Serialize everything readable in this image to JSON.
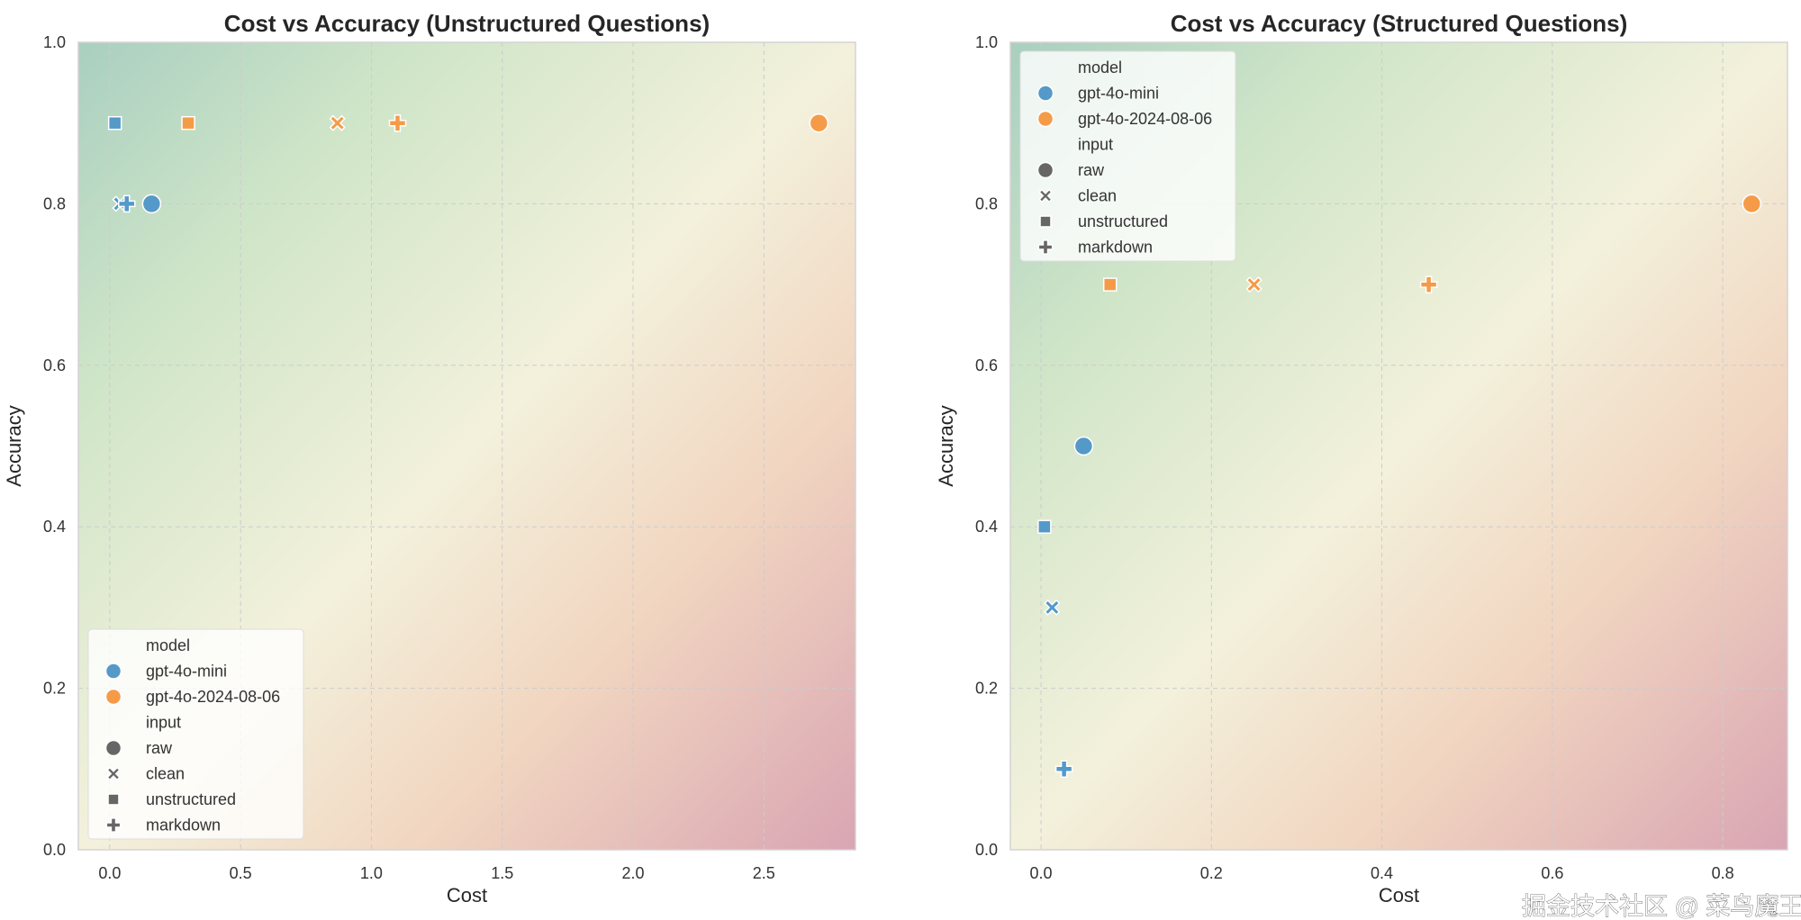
{
  "chart_data": [
    {
      "type": "scatter",
      "title": "Cost vs Accuracy (Unstructured Questions)",
      "xlabel": "Cost",
      "ylabel": "Accuracy",
      "xlim": [
        -0.12,
        2.85
      ],
      "ylim": [
        0,
        1
      ],
      "xticks": [
        "0.0",
        "0.5",
        "1.0",
        "1.5",
        "2.0",
        "2.5"
      ],
      "xtick_values": [
        0,
        0.5,
        1,
        1.5,
        2,
        2.5
      ],
      "yticks": [
        "0.0",
        "0.2",
        "0.4",
        "0.6",
        "0.8",
        "1.0"
      ],
      "ytick_values": [
        0,
        0.2,
        0.4,
        0.6,
        0.8,
        1
      ],
      "grid": true,
      "legend_position": "bottom-left",
      "points": [
        {
          "model": "gpt-4o-mini",
          "input": "unstructured",
          "x": 0.02,
          "y": 0.9
        },
        {
          "model": "gpt-4o-mini",
          "input": "clean",
          "x": 0.04,
          "y": 0.8
        },
        {
          "model": "gpt-4o-mini",
          "input": "markdown",
          "x": 0.065,
          "y": 0.8
        },
        {
          "model": "gpt-4o-mini",
          "input": "raw",
          "x": 0.16,
          "y": 0.8
        },
        {
          "model": "gpt-4o-2024-08-06",
          "input": "unstructured",
          "x": 0.3,
          "y": 0.9
        },
        {
          "model": "gpt-4o-2024-08-06",
          "input": "clean",
          "x": 0.87,
          "y": 0.9
        },
        {
          "model": "gpt-4o-2024-08-06",
          "input": "markdown",
          "x": 1.1,
          "y": 0.9
        },
        {
          "model": "gpt-4o-2024-08-06",
          "input": "raw",
          "x": 2.71,
          "y": 0.9
        }
      ]
    },
    {
      "type": "scatter",
      "title": "Cost vs Accuracy (Structured Questions)",
      "xlabel": "Cost",
      "ylabel": "Accuracy",
      "xlim": [
        -0.036,
        0.876
      ],
      "ylim": [
        0,
        1
      ],
      "xticks": [
        "0.0",
        "0.2",
        "0.4",
        "0.6",
        "0.8"
      ],
      "xtick_values": [
        0,
        0.2,
        0.4,
        0.6,
        0.8
      ],
      "yticks": [
        "0.0",
        "0.2",
        "0.4",
        "0.6",
        "0.8",
        "1.0"
      ],
      "ytick_values": [
        0,
        0.2,
        0.4,
        0.6,
        0.8,
        1
      ],
      "grid": true,
      "legend_position": "top-left",
      "points": [
        {
          "model": "gpt-4o-mini",
          "input": "raw",
          "x": 0.05,
          "y": 0.5
        },
        {
          "model": "gpt-4o-mini",
          "input": "unstructured",
          "x": 0.004,
          "y": 0.4
        },
        {
          "model": "gpt-4o-mini",
          "input": "clean",
          "x": 0.013,
          "y": 0.3
        },
        {
          "model": "gpt-4o-mini",
          "input": "markdown",
          "x": 0.027,
          "y": 0.1
        },
        {
          "model": "gpt-4o-2024-08-06",
          "input": "unstructured",
          "x": 0.081,
          "y": 0.7
        },
        {
          "model": "gpt-4o-2024-08-06",
          "input": "clean",
          "x": 0.25,
          "y": 0.7
        },
        {
          "model": "gpt-4o-2024-08-06",
          "input": "markdown",
          "x": 0.455,
          "y": 0.7
        },
        {
          "model": "gpt-4o-2024-08-06",
          "input": "raw",
          "x": 0.834,
          "y": 0.8
        }
      ]
    }
  ],
  "legend": {
    "model_title": "model",
    "models": [
      "gpt-4o-mini",
      "gpt-4o-2024-08-06"
    ],
    "input_title": "input",
    "inputs": [
      "raw",
      "clean",
      "unstructured",
      "markdown"
    ]
  },
  "colors": {
    "gpt-4o-mini": "#5599c9",
    "gpt-4o-2024-08-06": "#f59b48",
    "legend_marker": "#666666"
  },
  "watermark": "掘金技术社区 @ 菜鸟魔王"
}
